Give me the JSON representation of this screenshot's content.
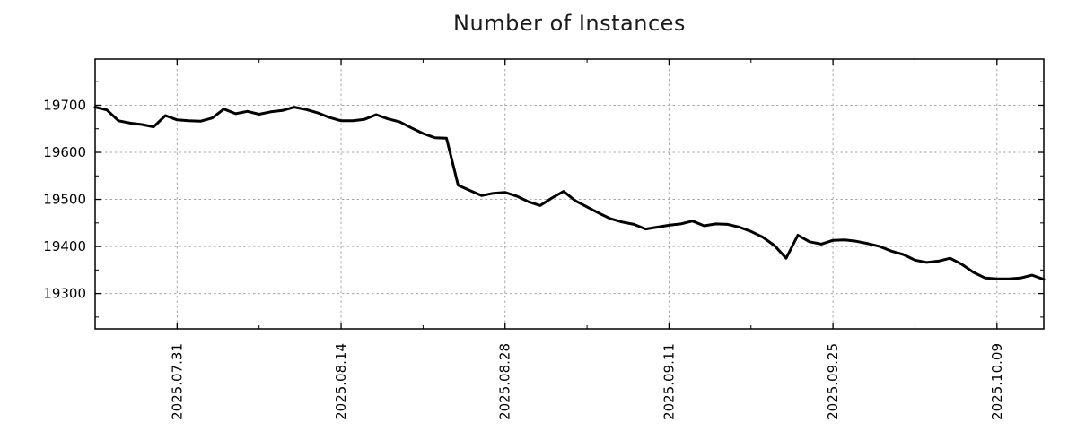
{
  "title": "Number of Instances",
  "chart_data": {
    "type": "line",
    "title": "Number of Instances",
    "xlabel": "",
    "ylabel": "",
    "legend": "none",
    "grid": "dashed gridlines at major ticks, both axes",
    "line_color": "#000000",
    "grid_color": "#a6a6a6",
    "border_color": "#000000",
    "ylim": [
      19225,
      19798
    ],
    "y_ticks": [
      19300,
      19400,
      19500,
      19600,
      19700
    ],
    "y_minor_step": 50,
    "x_tick_labels": [
      "2025.07.31",
      "2025.08.14",
      "2025.08.28",
      "2025.09.11",
      "2025.09.25",
      "2025.10.09"
    ],
    "x_minor_offset_days": 7,
    "x": [
      "2025.07.24",
      "2025.07.25",
      "2025.07.26",
      "2025.07.27",
      "2025.07.28",
      "2025.07.29",
      "2025.07.30",
      "2025.07.31",
      "2025.08.01",
      "2025.08.02",
      "2025.08.03",
      "2025.08.04",
      "2025.08.05",
      "2025.08.06",
      "2025.08.07",
      "2025.08.08",
      "2025.08.09",
      "2025.08.10",
      "2025.08.11",
      "2025.08.12",
      "2025.08.13",
      "2025.08.14",
      "2025.08.15",
      "2025.08.16",
      "2025.08.17",
      "2025.08.18",
      "2025.08.19",
      "2025.08.20",
      "2025.08.21",
      "2025.08.22",
      "2025.08.23",
      "2025.08.24",
      "2025.08.25",
      "2025.08.26",
      "2025.08.27",
      "2025.08.28",
      "2025.08.29",
      "2025.08.30",
      "2025.08.31",
      "2025.09.01",
      "2025.09.02",
      "2025.09.03",
      "2025.09.04",
      "2025.09.05",
      "2025.09.06",
      "2025.09.07",
      "2025.09.08",
      "2025.09.09",
      "2025.09.10",
      "2025.09.11",
      "2025.09.12",
      "2025.09.13",
      "2025.09.14",
      "2025.09.15",
      "2025.09.16",
      "2025.09.17",
      "2025.09.18",
      "2025.09.19",
      "2025.09.20",
      "2025.09.21",
      "2025.09.22",
      "2025.09.23",
      "2025.09.24",
      "2025.09.25",
      "2025.09.26",
      "2025.09.27",
      "2025.09.28",
      "2025.09.29",
      "2025.09.30",
      "2025.10.01",
      "2025.10.02",
      "2025.10.03",
      "2025.10.04",
      "2025.10.05",
      "2025.10.06",
      "2025.10.07",
      "2025.10.08",
      "2025.10.09",
      "2025.10.10",
      "2025.10.11",
      "2025.10.12",
      "2025.10.13"
    ],
    "values": [
      19696,
      19690,
      19667,
      19662,
      19659,
      19654,
      19678,
      19669,
      19667,
      19666,
      19673,
      19692,
      19682,
      19687,
      19681,
      19686,
      19689,
      19696,
      19691,
      19684,
      19674,
      19667,
      19667,
      19670,
      19680,
      19671,
      19665,
      19652,
      19640,
      19631,
      19630,
      19530,
      19519,
      19508,
      19513,
      19515,
      19507,
      19495,
      19487,
      19503,
      19517,
      19497,
      19484,
      19471,
      19459,
      19452,
      19447,
      19437,
      19441,
      19445,
      19448,
      19454,
      19444,
      19448,
      19447,
      19441,
      19432,
      19420,
      19402,
      19375,
      19424,
      19410,
      19405,
      19413,
      19414,
      19411,
      19406,
      19400,
      19390,
      19383,
      19371,
      19366,
      19369,
      19375,
      19362,
      19345,
      19333,
      19331,
      19331,
      19333,
      19339,
      19330
    ]
  }
}
